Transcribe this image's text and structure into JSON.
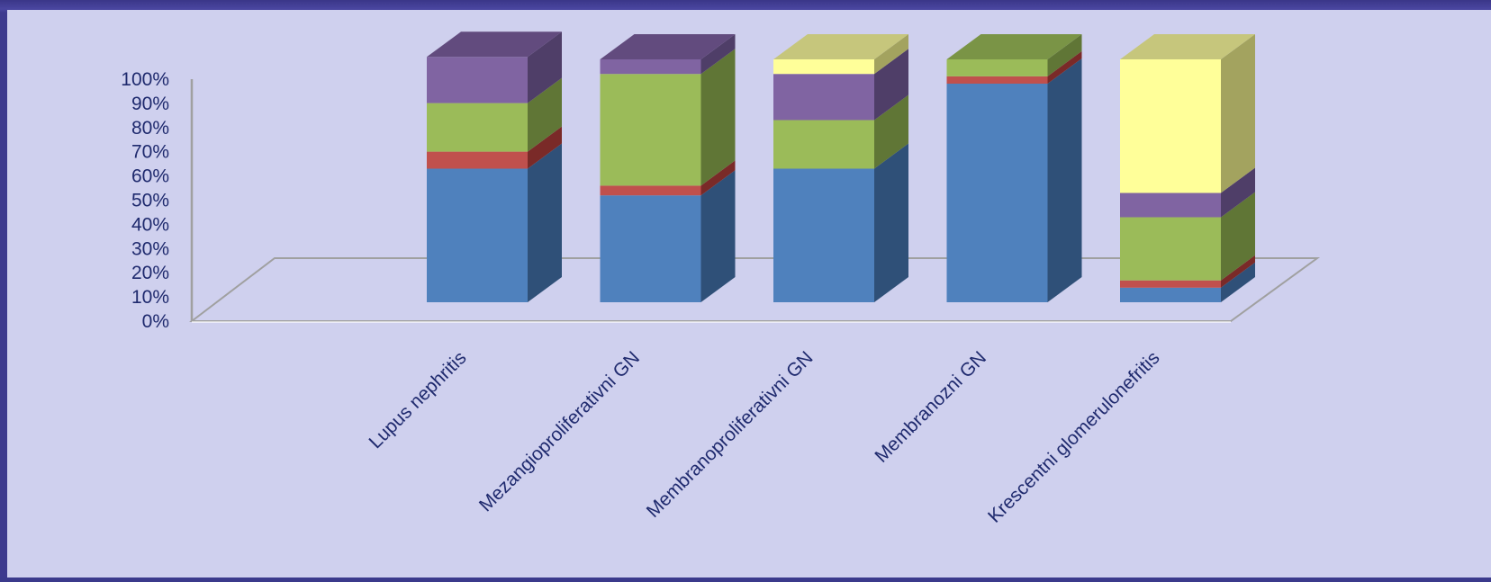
{
  "chart_data": {
    "type": "bar",
    "stacked": true,
    "percent": true,
    "three_d": true,
    "categories": [
      "Lupus nephritis",
      "Mezangioproliferativni GN",
      "Membranoproliferativni GN",
      "Membranozni GN",
      "Krescentni glomerulonefritis"
    ],
    "series": [
      {
        "values": [
          55,
          44,
          55,
          90,
          6
        ]
      },
      {
        "values": [
          7,
          4,
          0,
          3,
          3
        ]
      },
      {
        "values": [
          20,
          46,
          20,
          7,
          26
        ]
      },
      {
        "values": [
          19,
          6,
          19,
          0,
          10
        ]
      },
      {
        "values": [
          0,
          0,
          6,
          0,
          55
        ]
      }
    ],
    "ylim": [
      0,
      100
    ],
    "yticks": [
      "0%",
      "10%",
      "20%",
      "30%",
      "40%",
      "50%",
      "60%",
      "70%",
      "80%",
      "90%",
      "100%"
    ],
    "xlabel": "",
    "ylabel": "",
    "legend": "none",
    "colors": {
      "series_front": [
        "#4f81bd",
        "#c0504d",
        "#9bbb59",
        "#8064a2",
        "#ffff99"
      ],
      "series_side": [
        "#2f5078",
        "#7a2a28",
        "#607636",
        "#4f3e68",
        "#a3a35f"
      ],
      "series_top": [
        "#3d6494",
        "#983c3a",
        "#7a9446",
        "#624b7e",
        "#c6c67c"
      ],
      "panel_background": "#cfd0ee",
      "frame_background": "#3b3a8c",
      "label_color": "#1f2a6e",
      "axis_line": "#a0a0a0"
    }
  }
}
